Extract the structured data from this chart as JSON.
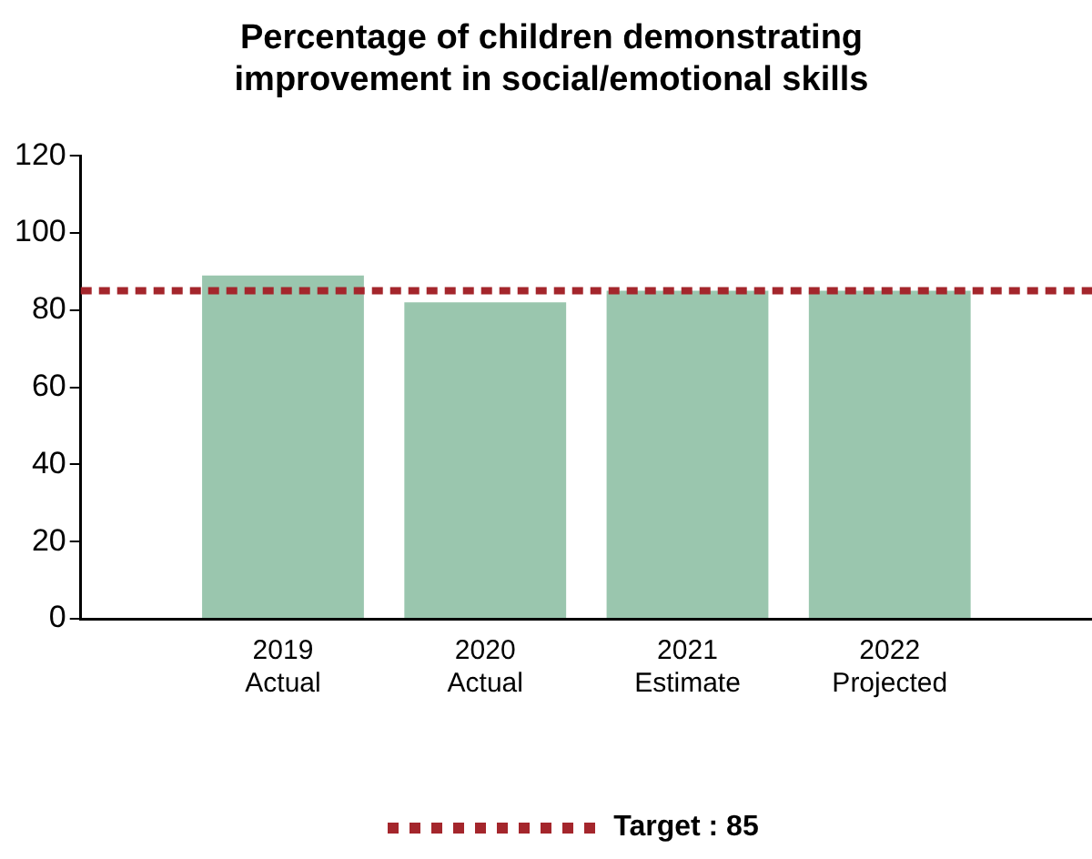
{
  "chart_data": {
    "type": "bar",
    "title": "Percentage of children demonstrating improvement in social/emotional skills",
    "categories": [
      "2019\nActual",
      "2020\nActual",
      "2021\nEstimate",
      "2022\nProjected"
    ],
    "values": [
      89,
      82,
      85,
      85
    ],
    "color": "#9ac6ae",
    "ylim": [
      0,
      120
    ],
    "yticks": [
      0,
      20,
      40,
      60,
      80,
      100,
      120
    ],
    "grid": false,
    "legend": "bottom",
    "ref_lines": [
      {
        "axis": "y",
        "value": 85,
        "label": "Target : 85",
        "color": "#a4262c",
        "line_style": "dotted"
      }
    ]
  }
}
